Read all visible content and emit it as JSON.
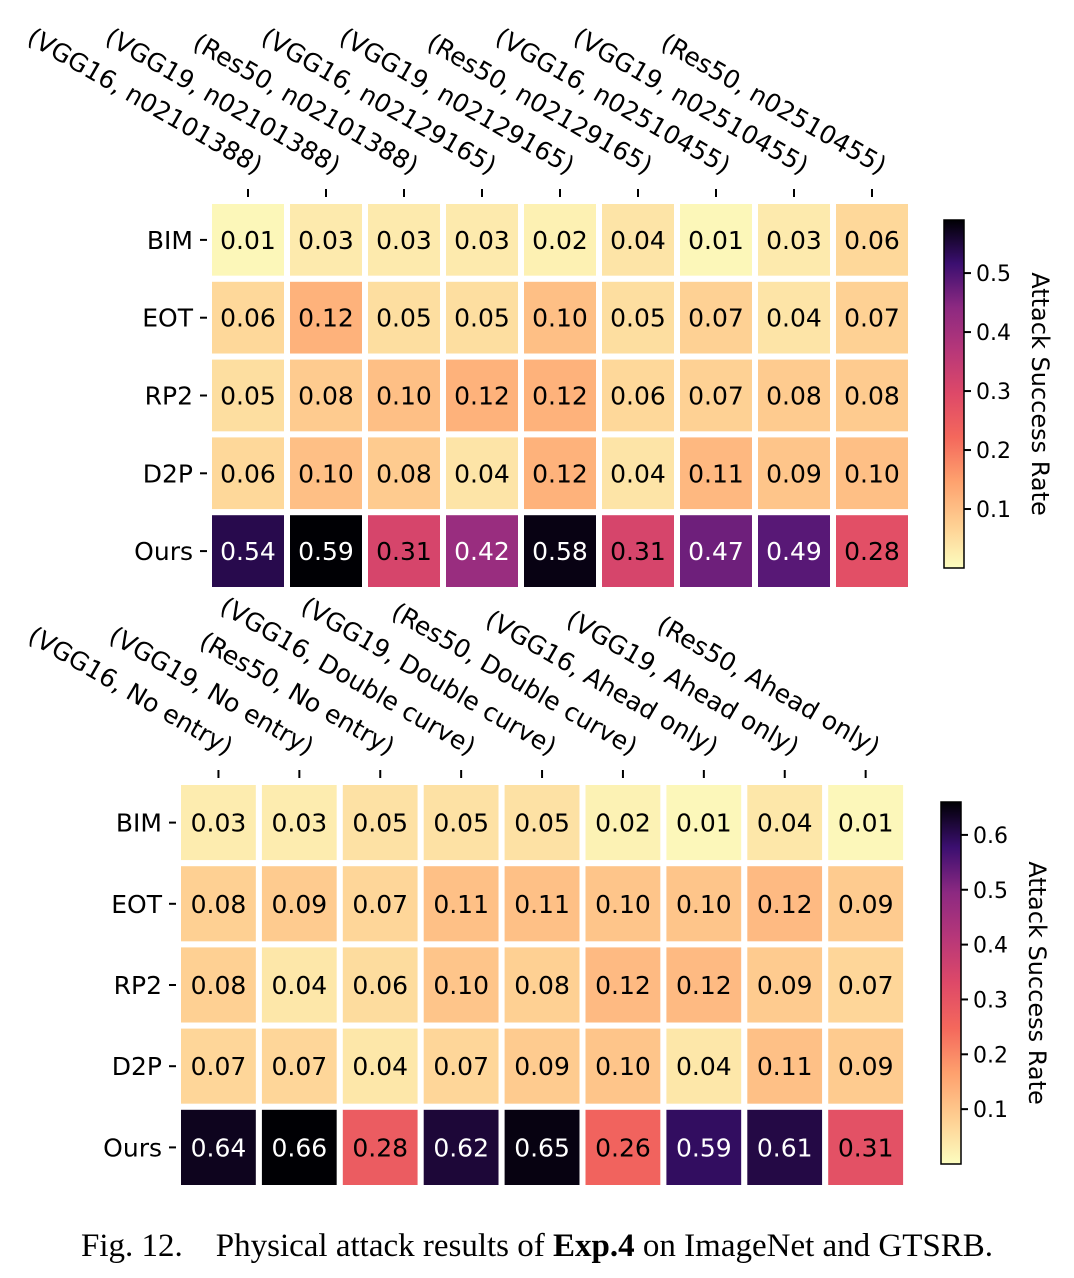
{
  "chart_data": [
    {
      "type": "heatmap",
      "dataset": "ImageNet",
      "columns": [
        "(VGG16, n02101388)",
        "(VGG19, n02101388)",
        "(Res50, n02101388)",
        "(VGG16, n02129165)",
        "(VGG19, n02129165)",
        "(Res50, n02129165)",
        "(VGG16, n02510455)",
        "(VGG19, n02510455)",
        "(Res50, n02510455)"
      ],
      "rows": [
        "BIM",
        "EOT",
        "RP2",
        "D2P",
        "Ours"
      ],
      "values": [
        [
          0.01,
          0.03,
          0.03,
          0.03,
          0.02,
          0.04,
          0.01,
          0.03,
          0.06
        ],
        [
          0.06,
          0.12,
          0.05,
          0.05,
          0.1,
          0.05,
          0.07,
          0.04,
          0.07
        ],
        [
          0.05,
          0.08,
          0.1,
          0.12,
          0.12,
          0.06,
          0.07,
          0.08,
          0.08
        ],
        [
          0.06,
          0.1,
          0.08,
          0.04,
          0.12,
          0.04,
          0.11,
          0.09,
          0.1
        ],
        [
          0.54,
          0.59,
          0.31,
          0.42,
          0.58,
          0.31,
          0.47,
          0.49,
          0.28
        ]
      ],
      "colorbar": {
        "label": "Attack Success Rate",
        "range": [
          0.0,
          0.59
        ],
        "ticks": [
          "0.1",
          "0.2",
          "0.3",
          "0.4",
          "0.5"
        ],
        "colormap": "magma_r"
      }
    },
    {
      "type": "heatmap",
      "dataset": "GTSRB",
      "columns": [
        "(VGG16, No entry)",
        "(VGG19, No entry)",
        "(Res50, No entry)",
        "(VGG16, Double curve)",
        "(VGG19, Double curve)",
        "(Res50, Double curve)",
        "(VGG16, Ahead only)",
        "(VGG19, Ahead only)",
        "(Res50, Ahead only)"
      ],
      "rows": [
        "BIM",
        "EOT",
        "RP2",
        "D2P",
        "Ours"
      ],
      "values": [
        [
          0.03,
          0.03,
          0.05,
          0.05,
          0.05,
          0.02,
          0.01,
          0.04,
          0.01
        ],
        [
          0.08,
          0.09,
          0.07,
          0.11,
          0.11,
          0.1,
          0.1,
          0.12,
          0.09
        ],
        [
          0.08,
          0.04,
          0.06,
          0.1,
          0.08,
          0.12,
          0.12,
          0.09,
          0.07
        ],
        [
          0.07,
          0.07,
          0.04,
          0.07,
          0.09,
          0.1,
          0.04,
          0.11,
          0.09
        ],
        [
          0.64,
          0.66,
          0.28,
          0.62,
          0.65,
          0.26,
          0.59,
          0.61,
          0.31
        ]
      ],
      "colorbar": {
        "label": "Attack Success Rate",
        "range": [
          0.0,
          0.66
        ],
        "ticks": [
          "0.1",
          "0.2",
          "0.3",
          "0.4",
          "0.5",
          "0.6"
        ],
        "colormap": "magma_r"
      }
    }
  ],
  "caption": {
    "prefix": "Fig. 12.",
    "text_before": "Physical attack results of",
    "bold": "Exp.4",
    "text_after": "on ImageNet and GTSRB."
  }
}
